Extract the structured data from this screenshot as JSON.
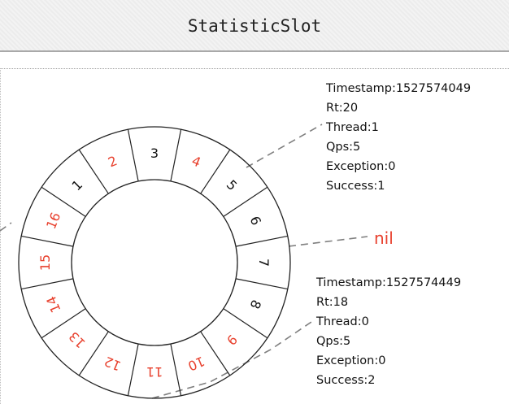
{
  "header": {
    "title": "StatisticSlot"
  },
  "ring": {
    "slots": [
      {
        "label": "1",
        "highlight": false
      },
      {
        "label": "2",
        "highlight": true
      },
      {
        "label": "3",
        "highlight": false
      },
      {
        "label": "4",
        "highlight": true
      },
      {
        "label": "5",
        "highlight": false
      },
      {
        "label": "6",
        "highlight": false
      },
      {
        "label": "7",
        "highlight": false
      },
      {
        "label": "8",
        "highlight": false
      },
      {
        "label": "9",
        "highlight": true
      },
      {
        "label": "10",
        "highlight": true
      },
      {
        "label": "11",
        "highlight": true
      },
      {
        "label": "12",
        "highlight": true
      },
      {
        "label": "13",
        "highlight": true
      },
      {
        "label": "14",
        "highlight": true
      },
      {
        "label": "15",
        "highlight": true
      },
      {
        "label": "16",
        "highlight": true
      }
    ],
    "colors": {
      "highlight": "#e8412e",
      "normal": "#111111",
      "line": "#222222",
      "dash": "#7f7f7f"
    }
  },
  "bucket_top": {
    "timestamp": "Timestamp:1527574049",
    "rt": "Rt:20",
    "thread": "Thread:1",
    "qps": "Qps:5",
    "exception": "Exception:0",
    "success": "Success:1"
  },
  "bucket_bottom": {
    "timestamp": "Timestamp:1527574449",
    "rt": "Rt:18",
    "thread": "Thread:0",
    "qps": "Qps:5",
    "exception": "Exception:0",
    "success": "Success:2"
  },
  "nil_label": "nil"
}
